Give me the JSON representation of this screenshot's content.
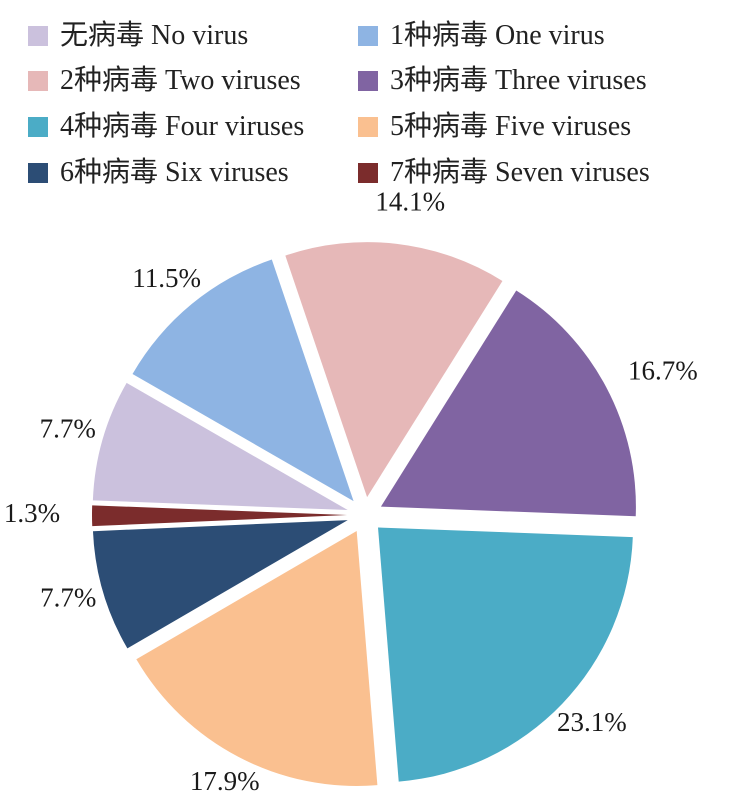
{
  "chart_data": {
    "type": "pie",
    "legend_position": "top",
    "series": [
      {
        "name": "无病毒 No virus",
        "value": 7.7,
        "label": "7.7%",
        "color": "#CBC1DD"
      },
      {
        "name": "1种病毒 One virus",
        "value": 11.5,
        "label": "11.5%",
        "color": "#8EB4E3"
      },
      {
        "name": "2种病毒 Two viruses",
        "value": 14.1,
        "label": "14.1%",
        "color": "#E6B8B8"
      },
      {
        "name": "3种病毒 Three viruses",
        "value": 16.7,
        "label": "16.7%",
        "color": "#8064A2"
      },
      {
        "name": "4种病毒 Four viruses",
        "value": 23.1,
        "label": "23.1%",
        "color": "#4BACC6"
      },
      {
        "name": "5种病毒 Five viruses",
        "value": 17.9,
        "label": "17.9%",
        "color": "#FAC090"
      },
      {
        "name": "6种病毒 Six viruses",
        "value": 7.7,
        "label": "7.7%",
        "color": "#2C4D75"
      },
      {
        "name": "7种病毒 Seven viruses",
        "value": 1.3,
        "label": "1.3%",
        "color": "#7B2C2C"
      }
    ]
  }
}
